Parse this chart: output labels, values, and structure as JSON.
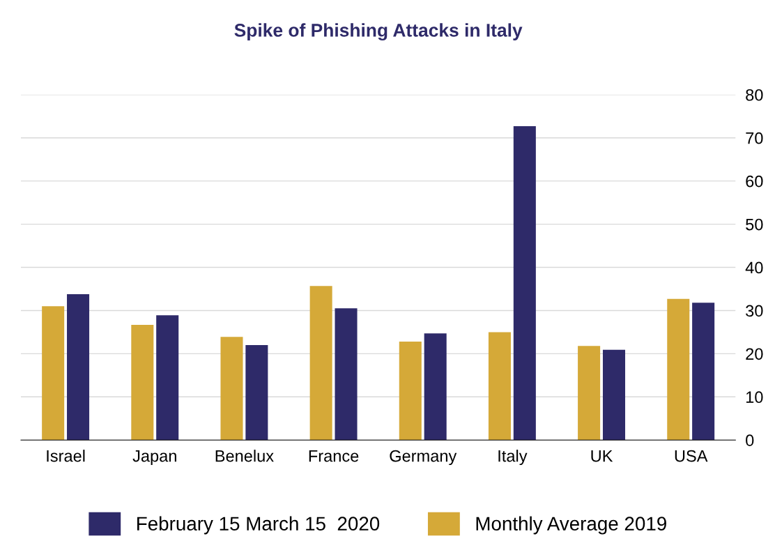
{
  "chart_data": {
    "type": "bar",
    "title": "Spike of Phishing Attacks in Italy",
    "categories": [
      "Israel",
      "Japan",
      "Benelux",
      "France",
      "Germany",
      "Italy",
      "UK",
      "USA"
    ],
    "series": [
      {
        "name": "Monthly Average 2019",
        "color": "#d5a938",
        "values": [
          31,
          26.7,
          23.9,
          35.7,
          22.8,
          25,
          21.8,
          32.7
        ]
      },
      {
        "name": "February 15 March 15  2020",
        "color": "#2e2a69",
        "values": [
          33.8,
          28.9,
          22,
          30.5,
          24.7,
          72.7,
          20.9,
          31.8
        ]
      }
    ],
    "ylim": [
      0,
      80
    ],
    "yticks": [
      0,
      10,
      20,
      30,
      40,
      50,
      60,
      70,
      80
    ],
    "grid": "y",
    "legend": "bottom"
  }
}
